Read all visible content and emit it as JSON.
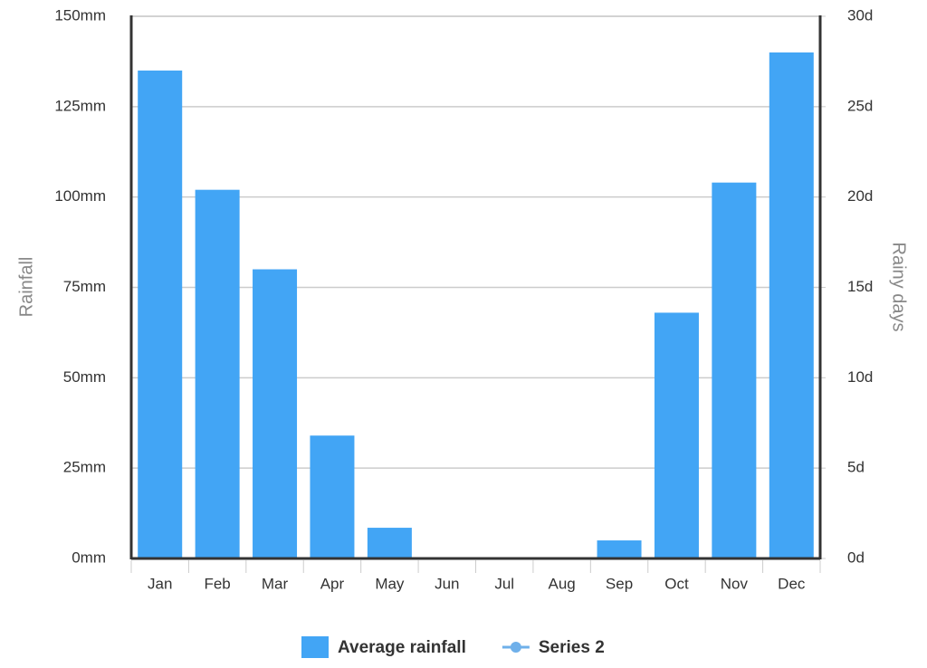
{
  "chart_data": {
    "type": "bar",
    "categories": [
      "Jan",
      "Feb",
      "Mar",
      "Apr",
      "May",
      "Jun",
      "Jul",
      "Aug",
      "Sep",
      "Oct",
      "Nov",
      "Dec"
    ],
    "series": [
      {
        "name": "Average rainfall",
        "color": "#42a5f5",
        "values": [
          135,
          102,
          80,
          34,
          8.5,
          0,
          0,
          0,
          5,
          68,
          104,
          140
        ]
      },
      {
        "name": "Series 2",
        "color": "#6fb0ea",
        "axis": "y2",
        "type": "line",
        "values": [
          null,
          null,
          null,
          null,
          null,
          null,
          null,
          null,
          null,
          null,
          null,
          null
        ]
      }
    ],
    "y_label": "Rainfall",
    "y2_label": "Rainy days",
    "ylim": [
      0,
      150
    ],
    "yticks": [
      {
        "value": 0,
        "label": "0mm"
      },
      {
        "value": 25,
        "label": "25mm"
      },
      {
        "value": 50,
        "label": "50mm"
      },
      {
        "value": 75,
        "label": "75mm"
      },
      {
        "value": 100,
        "label": "100mm"
      },
      {
        "value": 125,
        "label": "125mm"
      },
      {
        "value": 150,
        "label": "150mm"
      }
    ],
    "y2lim": [
      0,
      30
    ],
    "y2ticks": [
      {
        "value": 0,
        "label": "0d"
      },
      {
        "value": 5,
        "label": "5d"
      },
      {
        "value": 10,
        "label": "10d"
      },
      {
        "value": 15,
        "label": "15d"
      },
      {
        "value": 20,
        "label": "20d"
      },
      {
        "value": 25,
        "label": "25d"
      },
      {
        "value": 30,
        "label": "30d"
      }
    ],
    "grid": true,
    "legend": "bottom"
  }
}
